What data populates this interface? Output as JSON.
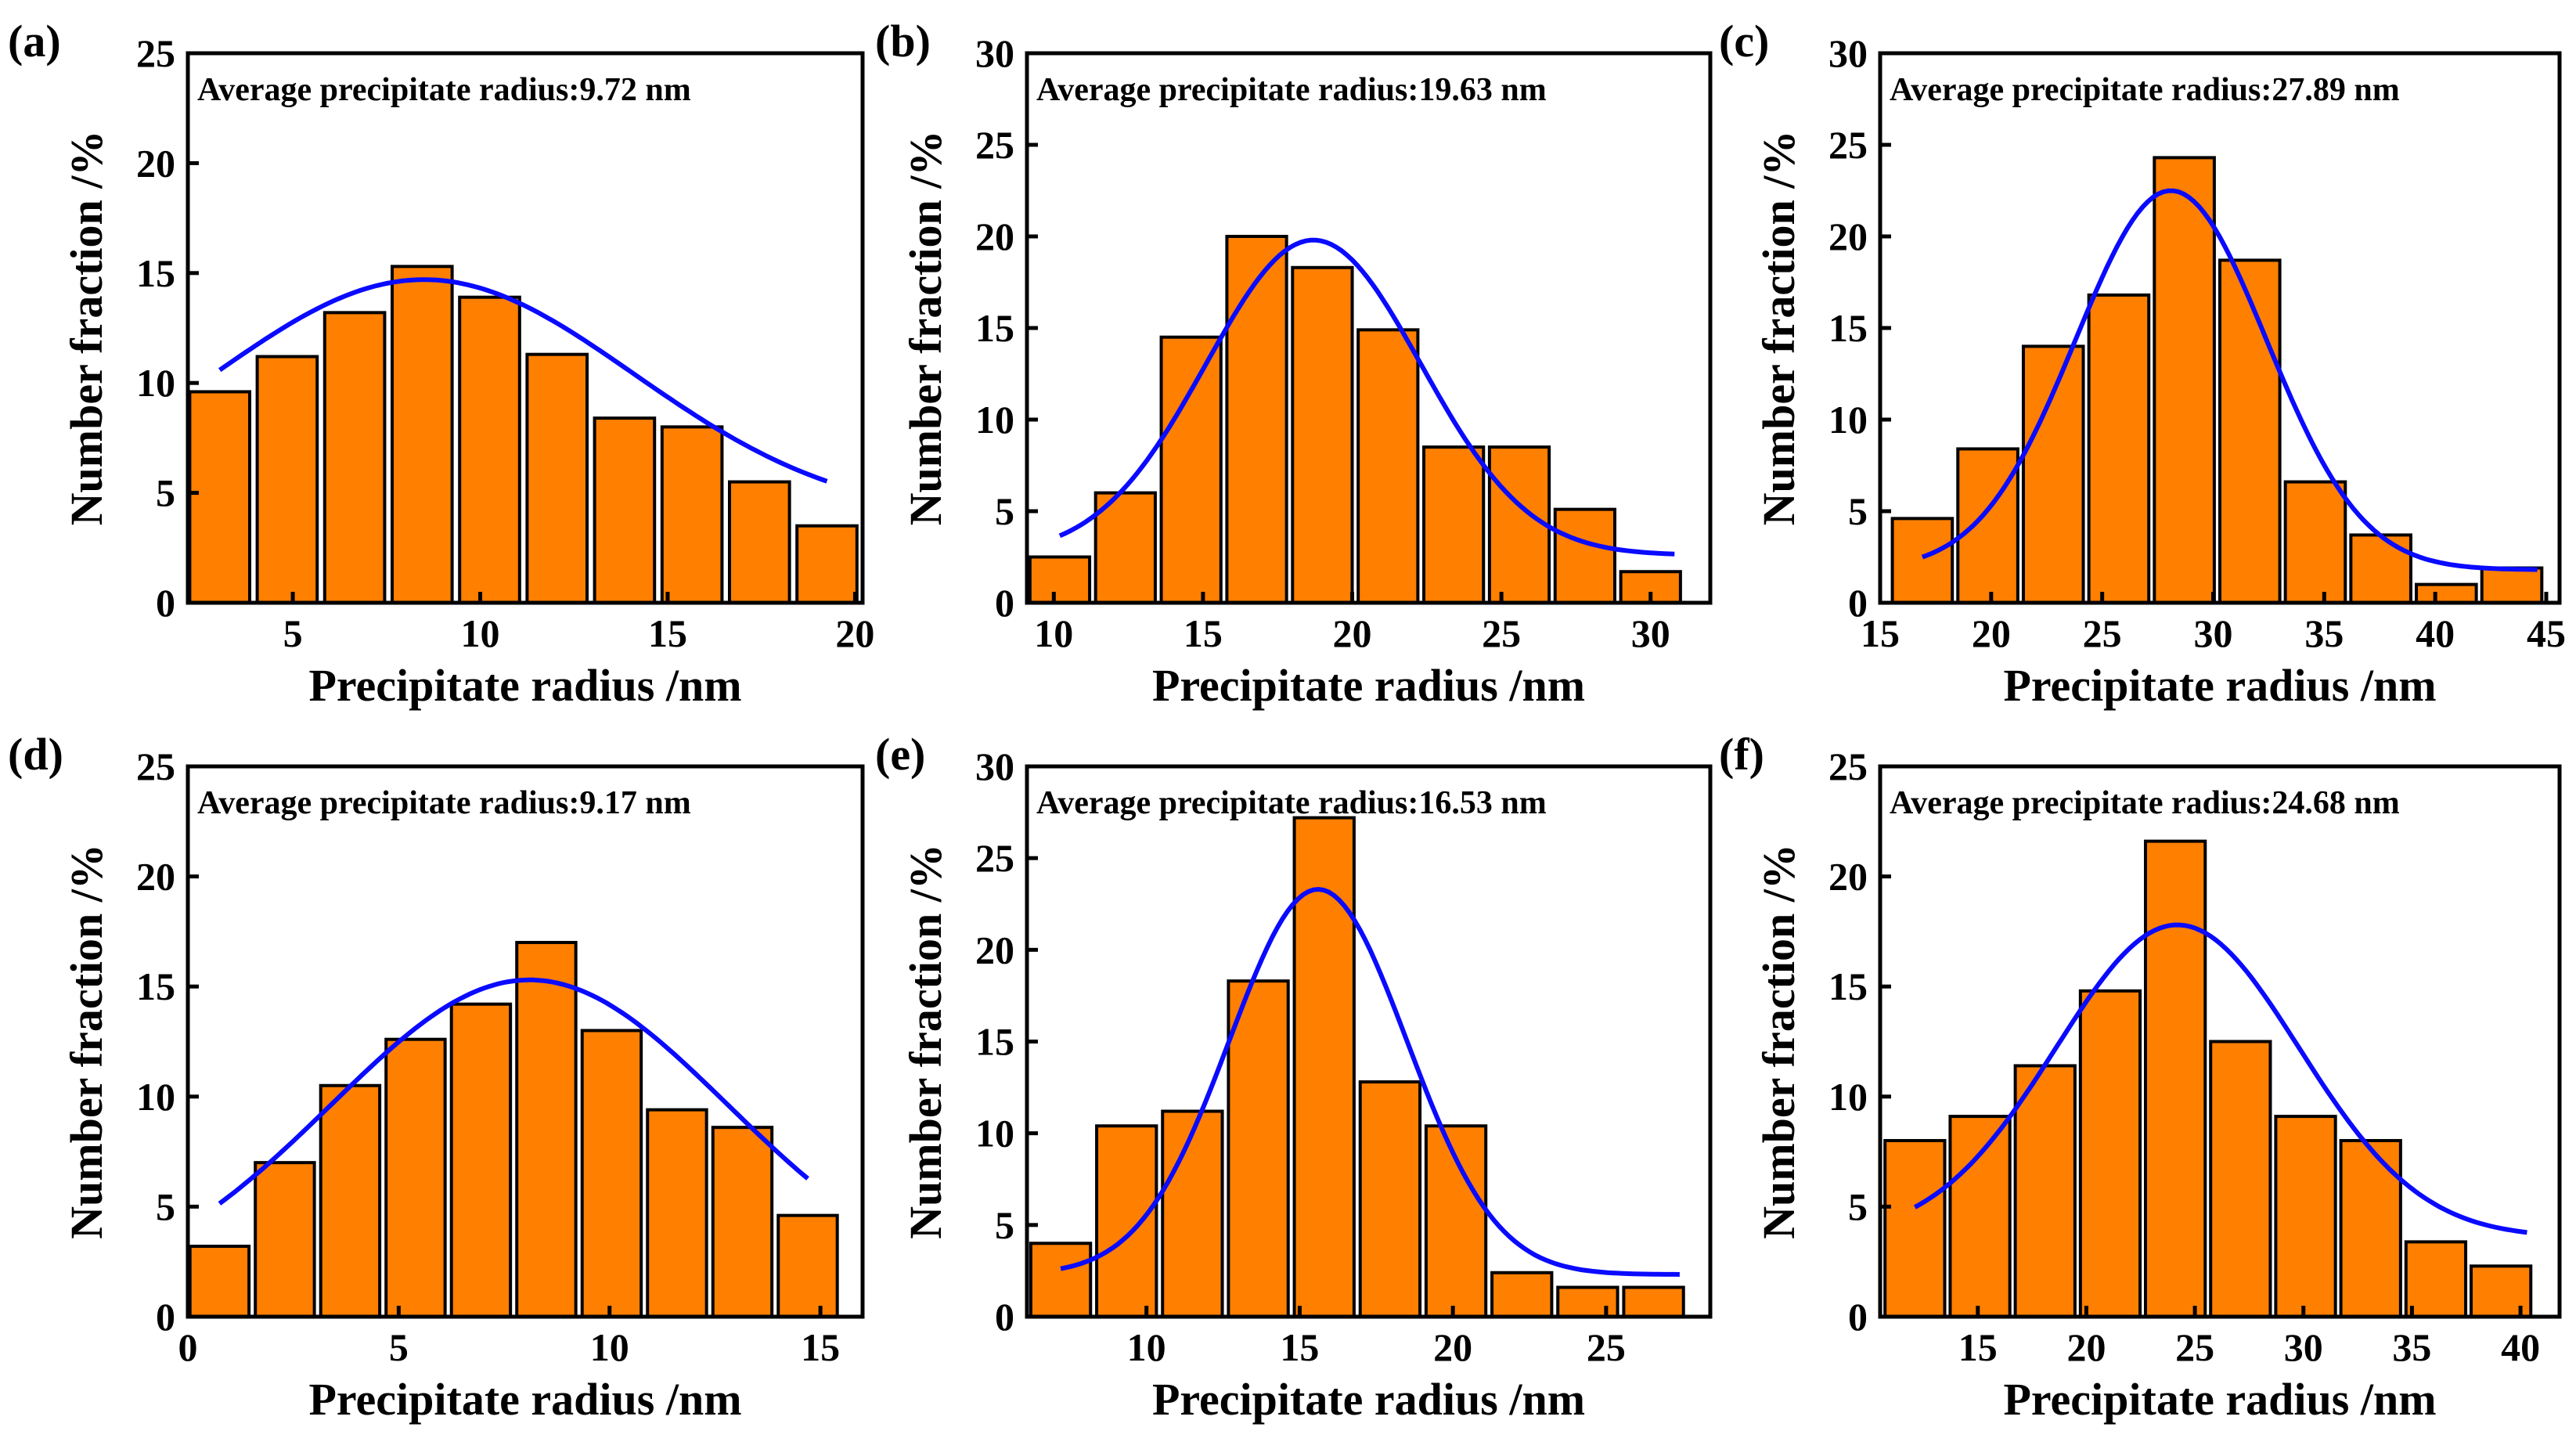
{
  "chart_data": [
    {
      "panel": "(a)",
      "type": "bar",
      "annotation": "Average precipitate radius:9.72 nm",
      "xlabel": "Precipitate radius /nm",
      "ylabel": "Number fraction /%",
      "xlim": [
        2.2,
        20.2
      ],
      "ylim": [
        0,
        25
      ],
      "xticks": [
        5,
        10,
        15,
        20
      ],
      "yticks": [
        0,
        5,
        10,
        15,
        20,
        25
      ],
      "bar_width": 1.6,
      "x": [
        3.05,
        4.85,
        6.65,
        8.45,
        10.25,
        12.05,
        13.85,
        15.65,
        17.45,
        19.25
      ],
      "values": [
        9.6,
        11.2,
        13.2,
        15.3,
        13.9,
        11.3,
        8.4,
        8.0,
        5.5,
        3.5
      ],
      "fit": {
        "x0": 3.05,
        "x1": 19.25,
        "amp": 10.9,
        "center": 8.5,
        "sigma": 5.6,
        "offset": 3.8
      }
    },
    {
      "panel": "(b)",
      "type": "bar",
      "annotation": "Average precipitate radius:19.63 nm",
      "xlabel": "Precipitate radius /nm",
      "ylabel": "Number fraction /%",
      "xlim": [
        9.1,
        32.0
      ],
      "ylim": [
        0,
        30
      ],
      "xticks": [
        10,
        15,
        20,
        25,
        30
      ],
      "yticks": [
        0,
        5,
        10,
        15,
        20,
        25,
        30
      ],
      "bar_width": 2.0,
      "x": [
        10.2,
        12.4,
        14.6,
        16.8,
        19.0,
        21.2,
        23.4,
        25.6,
        27.8,
        30.0
      ],
      "values": [
        2.5,
        6.0,
        14.5,
        20.0,
        18.3,
        14.9,
        8.5,
        8.5,
        5.1,
        1.7
      ],
      "fit": {
        "x0": 10.2,
        "x1": 30.8,
        "amp": 17.2,
        "center": 18.7,
        "sigma": 3.6,
        "offset": 2.6
      }
    },
    {
      "panel": "(c)",
      "type": "bar",
      "annotation": "Average precipitate radius:27.89 nm",
      "xlabel": "Precipitate radius /nm",
      "ylabel": "Number fraction /%",
      "xlim": [
        15.0,
        45.6
      ],
      "ylim": [
        0,
        30
      ],
      "xticks": [
        15,
        20,
        25,
        30,
        35,
        40,
        45
      ],
      "yticks": [
        0,
        5,
        10,
        15,
        20,
        25,
        30
      ],
      "bar_width": 2.7,
      "x": [
        16.9,
        19.85,
        22.8,
        25.75,
        28.7,
        31.65,
        34.6,
        37.55,
        40.5,
        43.45
      ],
      "values": [
        4.6,
        8.4,
        14.0,
        16.8,
        24.3,
        18.7,
        6.6,
        3.7,
        1.0,
        1.9
      ],
      "fit": {
        "x0": 16.9,
        "x1": 44.6,
        "amp": 20.7,
        "center": 28.1,
        "sigma": 4.3,
        "offset": 1.8
      }
    },
    {
      "panel": "(d)",
      "type": "bar",
      "annotation": "Average precipitate radius:9.17 nm",
      "xlabel": "Precipitate radius /nm",
      "ylabel": "Number fraction /%",
      "xlim": [
        0,
        16.0
      ],
      "ylim": [
        0,
        25
      ],
      "xticks": [
        0,
        5,
        10,
        15
      ],
      "yticks": [
        0,
        5,
        10,
        15,
        20,
        25
      ],
      "bar_width": 1.4,
      "x": [
        0.75,
        2.3,
        3.85,
        5.4,
        6.95,
        8.5,
        10.05,
        11.6,
        13.15,
        14.7
      ],
      "values": [
        3.2,
        7.0,
        10.5,
        12.6,
        14.2,
        17.0,
        13.0,
        9.4,
        8.6,
        4.6
      ],
      "fit": {
        "x0": 0.75,
        "x1": 14.7,
        "amp": 14.4,
        "center": 8.1,
        "sigma": 4.7,
        "offset": 0.9
      }
    },
    {
      "panel": "(e)",
      "type": "bar",
      "annotation": "Average precipitate radius:16.53 nm",
      "xlabel": "Precipitate radius /nm",
      "ylabel": "Number fraction /%",
      "xlim": [
        6.1,
        28.4
      ],
      "ylim": [
        0,
        30
      ],
      "xticks": [
        10,
        15,
        20,
        25
      ],
      "yticks": [
        0,
        5,
        10,
        15,
        20,
        25,
        30
      ],
      "bar_width": 1.95,
      "x": [
        7.2,
        9.35,
        11.5,
        13.65,
        15.8,
        17.95,
        20.1,
        22.25,
        24.4,
        26.55
      ],
      "values": [
        4.0,
        10.4,
        11.2,
        18.3,
        27.2,
        12.8,
        10.4,
        2.4,
        1.6,
        1.6
      ],
      "fit": {
        "x0": 7.2,
        "x1": 27.4,
        "amp": 21.0,
        "center": 15.6,
        "sigma": 2.9,
        "offset": 2.3
      }
    },
    {
      "panel": "(f)",
      "type": "bar",
      "annotation": "Average precipitate radius:24.68 nm",
      "xlabel": "Precipitate radius /nm",
      "ylabel": "Number fraction /%",
      "xlim": [
        10.5,
        41.8
      ],
      "ylim": [
        0,
        25
      ],
      "xticks": [
        15,
        20,
        25,
        30,
        35,
        40
      ],
      "yticks": [
        0,
        5,
        10,
        15,
        20,
        25
      ],
      "bar_width": 2.75,
      "x": [
        12.1,
        15.1,
        18.1,
        21.1,
        24.1,
        27.1,
        30.1,
        33.1,
        36.1,
        39.1
      ],
      "values": [
        8.0,
        9.1,
        11.4,
        14.8,
        21.6,
        12.5,
        9.1,
        8.0,
        3.4,
        2.3
      ],
      "fit": {
        "x0": 12.1,
        "x1": 40.3,
        "amp": 14.2,
        "center": 24.2,
        "sigma": 5.6,
        "offset": 3.6
      }
    }
  ]
}
